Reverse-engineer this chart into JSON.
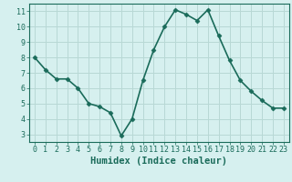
{
  "x": [
    0,
    1,
    2,
    3,
    4,
    5,
    6,
    7,
    8,
    9,
    10,
    11,
    12,
    13,
    14,
    15,
    16,
    17,
    18,
    19,
    20,
    21,
    22,
    23
  ],
  "y": [
    8.0,
    7.2,
    6.6,
    6.6,
    6.0,
    5.0,
    4.8,
    4.4,
    2.9,
    4.0,
    6.5,
    8.5,
    10.0,
    11.1,
    10.8,
    10.4,
    11.1,
    9.4,
    7.8,
    6.5,
    5.8,
    5.2,
    4.7,
    4.7
  ],
  "line_color": "#1a6b5a",
  "marker": "D",
  "marker_size": 2.5,
  "bg_color": "#d6f0ef",
  "grid_color": "#b8d8d5",
  "xlabel": "Humidex (Indice chaleur)",
  "xlim": [
    -0.5,
    23.5
  ],
  "ylim": [
    2.5,
    11.5
  ],
  "yticks": [
    3,
    4,
    5,
    6,
    7,
    8,
    9,
    10,
    11
  ],
  "xticks": [
    0,
    1,
    2,
    3,
    4,
    5,
    6,
    7,
    8,
    9,
    10,
    11,
    12,
    13,
    14,
    15,
    16,
    17,
    18,
    19,
    20,
    21,
    22,
    23
  ],
  "tick_label_fontsize": 6,
  "xlabel_fontsize": 7.5,
  "line_width": 1.2
}
